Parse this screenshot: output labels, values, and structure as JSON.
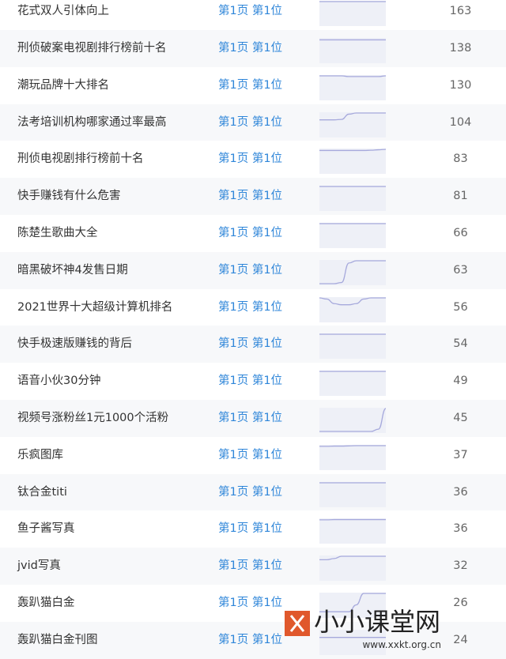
{
  "rows": [
    {
      "keyword": "花式双人引体向上",
      "rank": "第1页 第1位",
      "count": "163",
      "trend": [
        1,
        1,
        1,
        1,
        1,
        1,
        1,
        1,
        1,
        1
      ]
    },
    {
      "keyword": "刑侦破案电视剧排行榜前十名",
      "rank": "第1页 第1位",
      "count": "138",
      "trend": [
        0.95,
        0.95,
        0.95,
        0.95,
        0.95,
        0.95,
        0.95,
        0.95,
        0.95,
        0.95
      ]
    },
    {
      "keyword": "潮玩品牌十大排名",
      "rank": "第1页 第1位",
      "count": "130",
      "trend": [
        1,
        1,
        1,
        1,
        0.97,
        0.97,
        0.97,
        0.97,
        0.97,
        1
      ]
    },
    {
      "keyword": "法考培训机构哪家通过率最高",
      "rank": "第1页 第1位",
      "count": "104",
      "trend": [
        0.7,
        0.7,
        0.7,
        0.72,
        0.95,
        1,
        1,
        1,
        1,
        1
      ]
    },
    {
      "keyword": "刑侦电视剧排行榜前十名",
      "rank": "第1页 第1位",
      "count": "83",
      "trend": [
        0.95,
        0.95,
        0.95,
        0.95,
        0.95,
        0.95,
        0.95,
        0.96,
        0.98,
        1
      ]
    },
    {
      "keyword": "快手赚钱有什么危害",
      "rank": "第1页 第1位",
      "count": "81",
      "trend": [
        1,
        1,
        1,
        1,
        1,
        1,
        1,
        1,
        1,
        1
      ]
    },
    {
      "keyword": "陈楚生歌曲大全",
      "rank": "第1页 第1位",
      "count": "66",
      "trend": [
        1,
        1,
        1,
        1,
        1,
        1,
        1,
        1,
        1,
        1
      ]
    },
    {
      "keyword": "暗黑破坏神4发售日期",
      "rank": "第1页 第1位",
      "count": "63",
      "trend": [
        0,
        0,
        0,
        0.05,
        0.9,
        1,
        1,
        1,
        1,
        1
      ]
    },
    {
      "keyword": "2021世界十大超级计算机排名",
      "rank": "第1页 第1位",
      "count": "56",
      "trend": [
        1,
        0.95,
        0.75,
        0.7,
        0.7,
        0.75,
        0.95,
        1,
        1,
        1
      ]
    },
    {
      "keyword": "快手极速版赚钱的背后",
      "rank": "第1页 第1位",
      "count": "54",
      "trend": [
        1,
        1,
        1,
        1,
        1,
        1,
        1,
        1,
        1,
        1
      ]
    },
    {
      "keyword": "语音小伙30分钟",
      "rank": "第1页 第1位",
      "count": "49",
      "trend": [
        1,
        1,
        1,
        1,
        1,
        1,
        1,
        1,
        1,
        1
      ]
    },
    {
      "keyword": "视频号涨粉丝1元1000个活粉",
      "rank": "第1页 第1位",
      "count": "45",
      "trend": [
        0,
        0,
        0,
        0,
        0,
        0,
        0,
        0,
        0.1,
        1
      ]
    },
    {
      "keyword": "乐疯图库",
      "rank": "第1页 第1位",
      "count": "37",
      "trend": [
        0.97,
        0.97,
        0.98,
        0.98,
        0.99,
        1,
        1,
        1,
        1,
        1
      ]
    },
    {
      "keyword": "钛合金titi",
      "rank": "第1页 第1位",
      "count": "36",
      "trend": [
        1,
        1,
        1,
        1,
        1,
        1,
        1,
        1,
        1,
        1
      ]
    },
    {
      "keyword": "鱼子酱写真",
      "rank": "第1页 第1位",
      "count": "36",
      "trend": [
        0.97,
        0.97,
        0.98,
        0.98,
        0.98,
        0.98,
        0.98,
        0.98,
        0.98,
        0.98
      ]
    },
    {
      "keyword": "jvid写真",
      "rank": "第1页 第1位",
      "count": "32",
      "trend": [
        0.85,
        0.85,
        0.9,
        1,
        1,
        1,
        1,
        1,
        1,
        1
      ]
    },
    {
      "keyword": "轰趴猫白金",
      "rank": "第1页 第1位",
      "count": "26",
      "trend": [
        0.2,
        0.2,
        0.2,
        0.2,
        0.2,
        0.5,
        1,
        1,
        1,
        1
      ]
    },
    {
      "keyword": "轰趴猫白金刊图",
      "rank": "第1页 第1位",
      "count": "24",
      "trend": [
        0.7,
        0.7,
        0.7,
        0.7,
        0.7,
        0.7,
        0.7,
        0.7,
        0.7,
        0.7
      ]
    }
  ],
  "colors": {
    "link": "#2f86d9",
    "spark_line": "#a6a9dc",
    "spark_fill": "#eef0f7",
    "row_alt": "#f7f8fa"
  },
  "watermark": {
    "logo_icon": "x-logo",
    "text": "小小课堂网",
    "url": "www.xxkt.org.cn"
  }
}
